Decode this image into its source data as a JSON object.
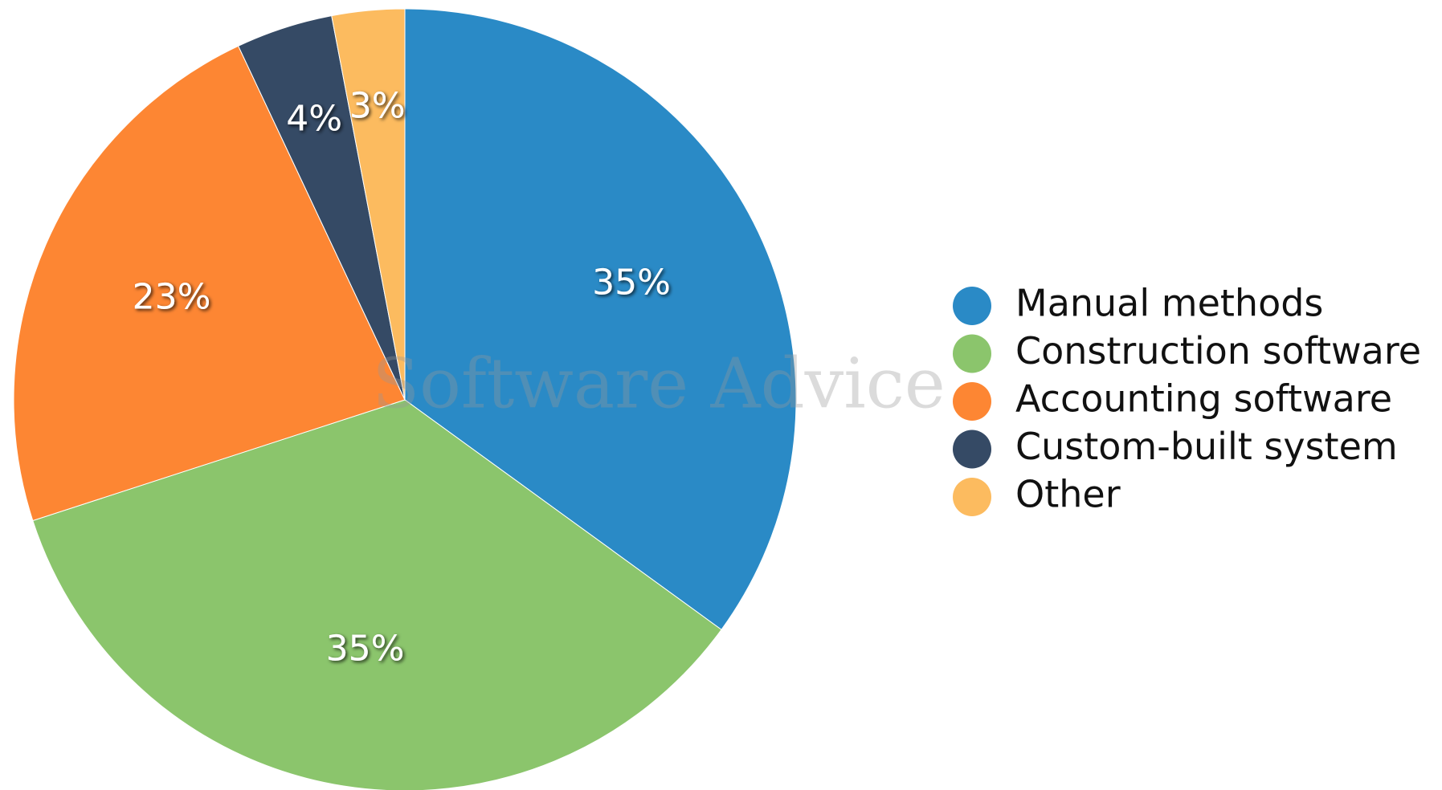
{
  "chart_data": {
    "type": "pie",
    "watermark": "Software Advice",
    "categories": [
      "Manual methods",
      "Construction software",
      "Accounting software",
      "Custom-built system",
      "Other"
    ],
    "values": [
      35,
      35,
      23,
      4,
      3
    ],
    "value_labels": [
      "35%",
      "35%",
      "23%",
      "4%",
      "3%"
    ],
    "colors": [
      "#2a8ac6",
      "#8bc56c",
      "#fd8633",
      "#354a65",
      "#fcbb5f"
    ],
    "legend": "right"
  }
}
